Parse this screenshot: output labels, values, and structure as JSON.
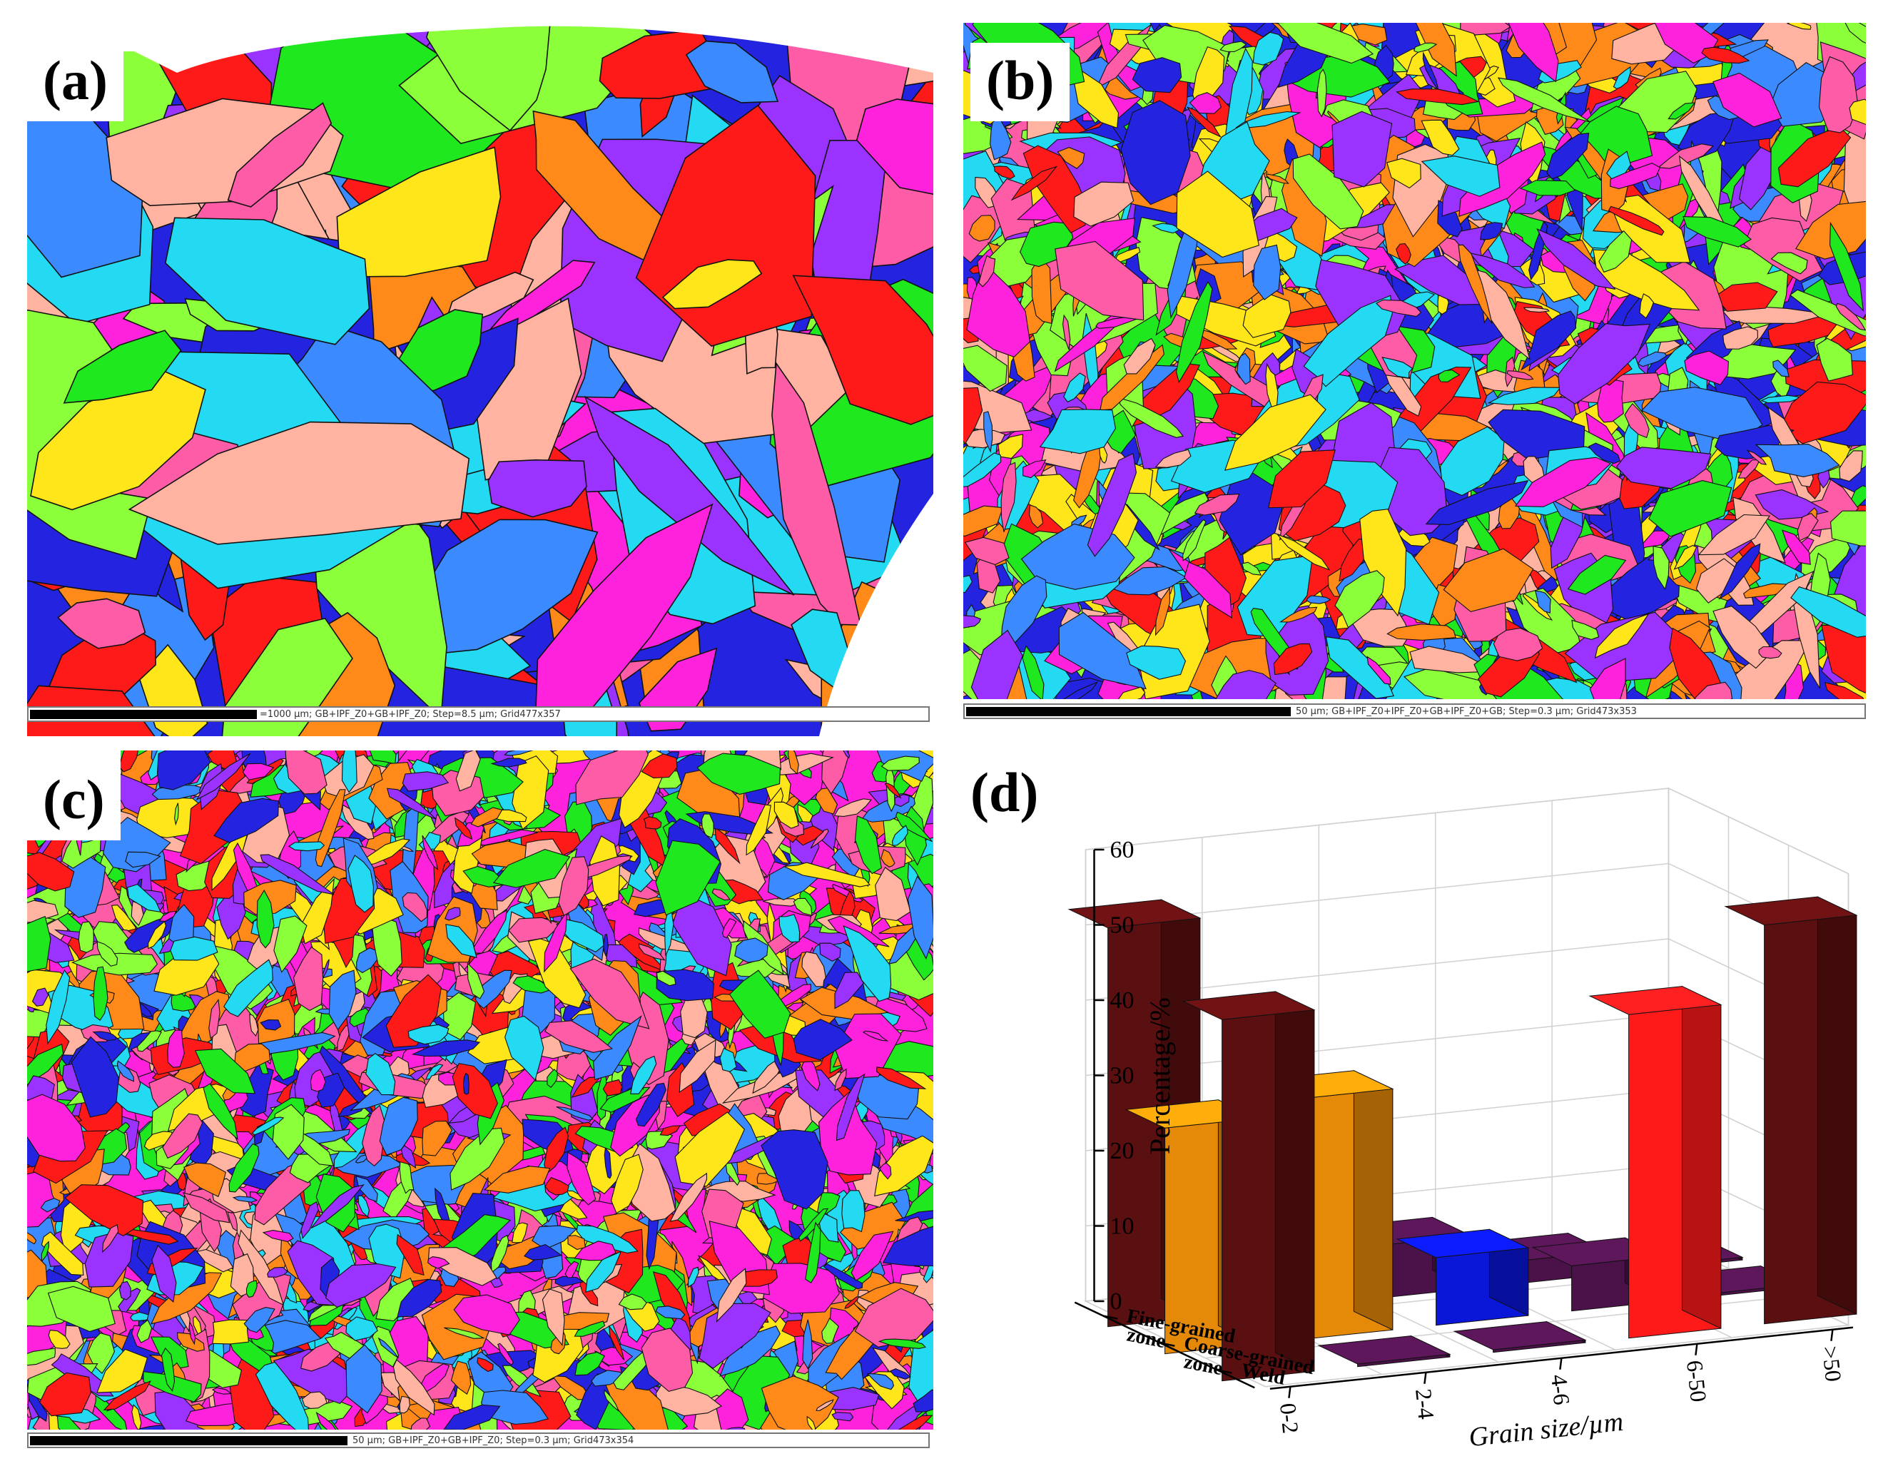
{
  "panels": [
    {
      "label": "(a)",
      "scalebar": "=1000 µm; GB+IPF_Z0+GB+IPF_Z0; Step=8.5 µm; Grid477x357"
    },
    {
      "label": "(b)",
      "scalebar": "50 µm; GB+IPF_Z0+IPF_Z0+GB+IPF_Z0+GB; Step=0.3 µm; Grid473x353"
    },
    {
      "label": "(c)",
      "scalebar": "50 µm; GB+IPF_Z0+GB+IPF_Z0; Step=0.3 µm; Grid473x354"
    },
    {
      "label": "(d)"
    }
  ],
  "map_colors": [
    "#ff1a1a",
    "#1fe81f",
    "#2424e0",
    "#ff22dd",
    "#24d9f2",
    "#ff8a1a",
    "#9a33ff",
    "#ffe61a",
    "#8aff3a",
    "#ff5ca8",
    "#3c8aff",
    "#ffb3a0"
  ],
  "chart_data": {
    "type": "bar3d",
    "xlabel": "Grain size/µm",
    "zlabel": "Percentage/%",
    "categories": [
      ">50",
      "6-50",
      "4-6",
      "2-4",
      "0-2"
    ],
    "zones": [
      "Fine-grained zone",
      "Coarse-grained zone",
      "Weld"
    ],
    "zone_labels": [
      [
        "Fine-grained",
        "zone"
      ],
      [
        "Coarse-grained",
        "zone"
      ],
      [
        "Weld"
      ]
    ],
    "zlim": [
      0,
      60
    ],
    "zticks": [
      0,
      10,
      20,
      30,
      40,
      50,
      60
    ],
    "series": [
      {
        "name": "Fine-grained zone",
        "values": [
          0,
          3,
          7,
          6,
          53
        ],
        "colors": [
          "#4a1248",
          "#4a1248",
          "#4a1248",
          "#4a1248",
          "#5a0f10"
        ]
      },
      {
        "name": "Coarse-grained zone",
        "values": [
          0,
          6,
          9,
          32,
          30
        ],
        "colors": [
          "#4a1248",
          "#4a1248",
          "#0a16d8",
          "#e58a08",
          "#e58a08"
        ]
      },
      {
        "name": "Weld",
        "values": [
          53,
          43,
          0,
          0,
          48
        ],
        "colors": [
          "#5a0f10",
          "#ff1a1a",
          "#4a1248",
          "#4a1248",
          "#5a0f10"
        ]
      }
    ]
  }
}
